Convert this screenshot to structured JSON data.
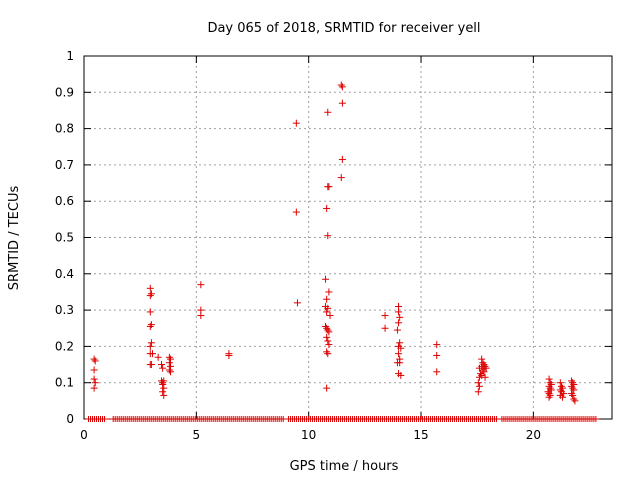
{
  "chart_data": {
    "type": "scatter",
    "title": "Day 065 of 2018, SRMTID for receiver yell",
    "xlabel": "GPS time / hours",
    "ylabel": "SRMTID / TECUs",
    "xlim": [
      0,
      23.5
    ],
    "ylim": [
      0,
      1
    ],
    "xticks": [
      0,
      5,
      10,
      15,
      20
    ],
    "xtick_labels": [
      "0",
      "5",
      "10",
      "15",
      "20"
    ],
    "yticks": [
      0,
      0.1,
      0.2,
      0.3,
      0.4,
      0.5,
      0.6,
      0.7,
      0.8,
      0.9,
      1
    ],
    "ytick_labels": [
      "0",
      "0.1",
      "0.2",
      "0.3",
      "0.4",
      "0.5",
      "0.6",
      "0.7",
      "0.8",
      "0.9",
      "1"
    ],
    "grid": true,
    "marker": "+",
    "series_color": "#dd0000",
    "zero_baseline_ranges": [
      [
        0.2,
        1.0
      ],
      [
        1.3,
        8.9
      ],
      [
        9.1,
        18.4
      ],
      [
        18.6,
        22.8
      ]
    ],
    "points": [
      [
        0.45,
        0.165
      ],
      [
        0.5,
        0.16
      ],
      [
        0.45,
        0.135
      ],
      [
        0.45,
        0.11
      ],
      [
        0.5,
        0.1
      ],
      [
        0.45,
        0.085
      ],
      [
        2.95,
        0.36
      ],
      [
        2.95,
        0.34
      ],
      [
        3.0,
        0.345
      ],
      [
        2.95,
        0.295
      ],
      [
        3.0,
        0.26
      ],
      [
        2.95,
        0.255
      ],
      [
        3.0,
        0.21
      ],
      [
        2.95,
        0.2
      ],
      [
        2.95,
        0.18
      ],
      [
        3.05,
        0.18
      ],
      [
        2.95,
        0.15
      ],
      [
        3.0,
        0.15
      ],
      [
        3.3,
        0.17
      ],
      [
        3.45,
        0.15
      ],
      [
        3.5,
        0.14
      ],
      [
        3.45,
        0.105
      ],
      [
        3.5,
        0.1
      ],
      [
        3.55,
        0.105
      ],
      [
        3.5,
        0.095
      ],
      [
        3.55,
        0.085
      ],
      [
        3.5,
        0.075
      ],
      [
        3.55,
        0.065
      ],
      [
        3.8,
        0.17
      ],
      [
        3.85,
        0.165
      ],
      [
        3.8,
        0.155
      ],
      [
        3.85,
        0.145
      ],
      [
        3.8,
        0.135
      ],
      [
        3.85,
        0.13
      ],
      [
        5.2,
        0.37
      ],
      [
        5.2,
        0.3
      ],
      [
        5.2,
        0.285
      ],
      [
        6.45,
        0.18
      ],
      [
        6.45,
        0.175
      ],
      [
        9.45,
        0.815
      ],
      [
        9.45,
        0.57
      ],
      [
        9.5,
        0.32
      ],
      [
        10.75,
        0.385
      ],
      [
        10.8,
        0.33
      ],
      [
        10.75,
        0.31
      ],
      [
        10.85,
        0.305
      ],
      [
        10.8,
        0.295
      ],
      [
        10.9,
        0.35
      ],
      [
        10.95,
        0.285
      ],
      [
        10.75,
        0.255
      ],
      [
        10.8,
        0.25
      ],
      [
        10.85,
        0.245
      ],
      [
        10.9,
        0.24
      ],
      [
        10.8,
        0.225
      ],
      [
        10.85,
        0.215
      ],
      [
        10.9,
        0.205
      ],
      [
        10.8,
        0.185
      ],
      [
        10.85,
        0.18
      ],
      [
        10.8,
        0.085
      ],
      [
        10.85,
        0.845
      ],
      [
        10.85,
        0.64
      ],
      [
        10.9,
        0.64
      ],
      [
        10.8,
        0.58
      ],
      [
        10.85,
        0.505
      ],
      [
        11.45,
        0.92
      ],
      [
        11.5,
        0.915
      ],
      [
        11.5,
        0.87
      ],
      [
        11.5,
        0.715
      ],
      [
        11.45,
        0.665
      ],
      [
        13.4,
        0.285
      ],
      [
        13.4,
        0.25
      ],
      [
        14.0,
        0.31
      ],
      [
        14.0,
        0.295
      ],
      [
        14.05,
        0.28
      ],
      [
        14.0,
        0.265
      ],
      [
        13.95,
        0.245
      ],
      [
        14.05,
        0.21
      ],
      [
        14.0,
        0.2
      ],
      [
        14.1,
        0.195
      ],
      [
        14.0,
        0.18
      ],
      [
        14.05,
        0.165
      ],
      [
        13.95,
        0.155
      ],
      [
        14.05,
        0.155
      ],
      [
        14.0,
        0.125
      ],
      [
        14.1,
        0.12
      ],
      [
        15.7,
        0.205
      ],
      [
        15.7,
        0.175
      ],
      [
        15.7,
        0.13
      ],
      [
        17.6,
        0.14
      ],
      [
        17.65,
        0.125
      ],
      [
        17.6,
        0.115
      ],
      [
        17.55,
        0.1
      ],
      [
        17.6,
        0.09
      ],
      [
        17.55,
        0.075
      ],
      [
        17.7,
        0.165
      ],
      [
        17.75,
        0.155
      ],
      [
        17.7,
        0.145
      ],
      [
        17.8,
        0.15
      ],
      [
        17.85,
        0.145
      ],
      [
        17.75,
        0.135
      ],
      [
        17.8,
        0.13
      ],
      [
        17.9,
        0.14
      ],
      [
        17.7,
        0.12
      ],
      [
        17.85,
        0.115
      ],
      [
        20.7,
        0.11
      ],
      [
        20.75,
        0.1
      ],
      [
        20.8,
        0.095
      ],
      [
        20.7,
        0.09
      ],
      [
        20.75,
        0.085
      ],
      [
        20.8,
        0.08
      ],
      [
        20.65,
        0.075
      ],
      [
        20.7,
        0.07
      ],
      [
        20.75,
        0.065
      ],
      [
        20.7,
        0.06
      ],
      [
        21.2,
        0.1
      ],
      [
        21.25,
        0.09
      ],
      [
        21.3,
        0.085
      ],
      [
        21.2,
        0.08
      ],
      [
        21.25,
        0.075
      ],
      [
        21.35,
        0.07
      ],
      [
        21.2,
        0.065
      ],
      [
        21.3,
        0.06
      ],
      [
        21.7,
        0.105
      ],
      [
        21.75,
        0.1
      ],
      [
        21.8,
        0.095
      ],
      [
        21.7,
        0.09
      ],
      [
        21.75,
        0.085
      ],
      [
        21.8,
        0.08
      ],
      [
        21.7,
        0.07
      ],
      [
        21.75,
        0.065
      ],
      [
        21.8,
        0.055
      ],
      [
        21.85,
        0.05
      ]
    ]
  }
}
